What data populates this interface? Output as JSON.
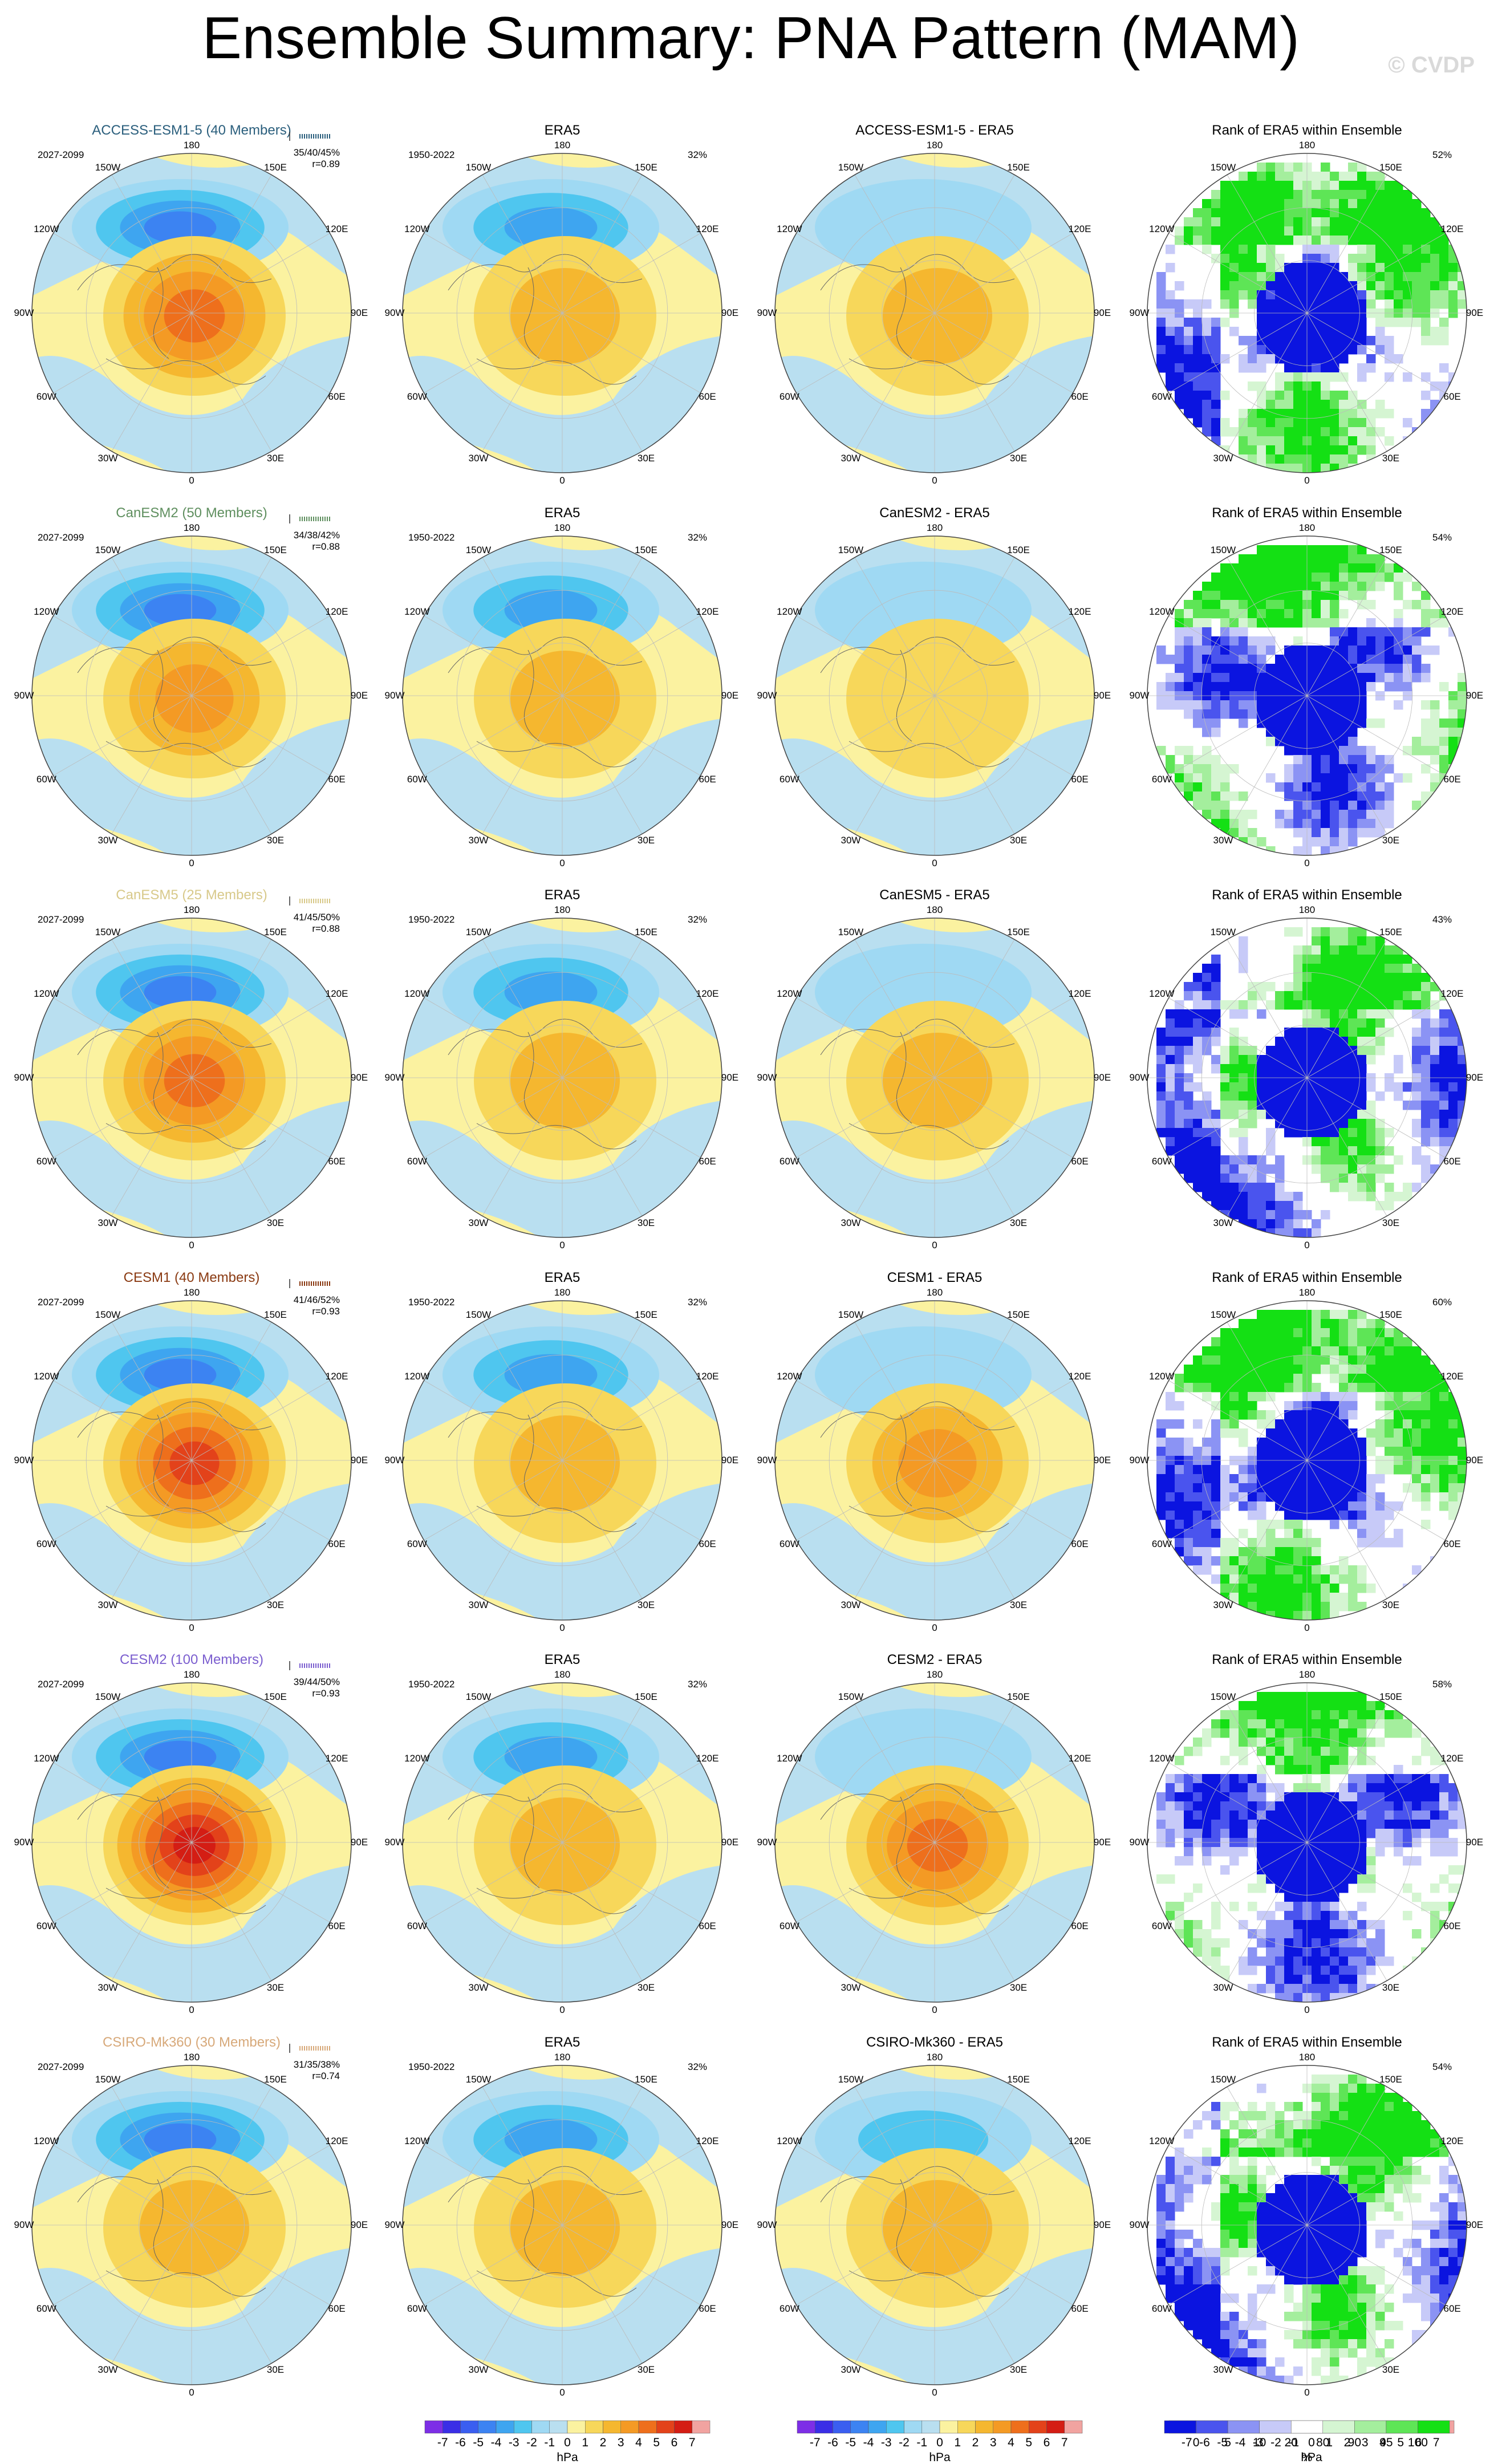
{
  "page": {
    "title": "Ensemble Summary: PNA Pattern (MAM)",
    "watermark": "© CVDP"
  },
  "colors": {
    "model_text": [
      "#2b5f7d",
      "#5f8f5f",
      "#d8c98a",
      "#8a3a12",
      "#7b5ecf",
      "#d7a97a"
    ],
    "ocean": "#b9dff0",
    "land": "#fbf2a0"
  },
  "chart_data": {
    "type": "heatmap",
    "projection": "north-polar-stereographic",
    "units": "hPa",
    "grid": true,
    "longitude_labels": [
      "180",
      "150E",
      "120E",
      "90E",
      "60E",
      "30E",
      "0",
      "30W",
      "60W",
      "90W",
      "120W",
      "150W"
    ],
    "hpa_colorbar_labels": [
      "-7",
      "-6",
      "-5",
      "-4",
      "-3",
      "-2",
      "-1",
      "0",
      "1",
      "2",
      "3",
      "4",
      "5",
      "6",
      "7"
    ],
    "rank_colorbar_labels": [
      "0",
      "5",
      "10",
      "20",
      "80",
      "90",
      "95",
      "100"
    ],
    "rank_colorbar_unit": "%",
    "hpa_colors": [
      "#7d2ee6",
      "#3a2ee6",
      "#3a5ef0",
      "#3c83f2",
      "#3ea5f0",
      "#4fc6ef",
      "#9fd9f3",
      "#b9dff0",
      "#fbf2a0",
      "#f7d75a",
      "#f5b72f",
      "#f49a24",
      "#ee6f1c",
      "#e3421a",
      "#d41d14",
      "#f1a3a0"
    ],
    "rank_colors": [
      "#0b14e0",
      "#4a54ee",
      "#8b93f4",
      "#c7caf8",
      "#ffffff",
      "#d5f5d2",
      "#a4ee9d",
      "#5ee556",
      "#14e014"
    ],
    "rows": [
      {
        "model": "ACCESS-ESM1-5 (40 Members)",
        "period": "2027-2099",
        "pct_range": "35/40/45%",
        "r": "r=0.89",
        "obs": "ERA5",
        "obs_period": "1950-2022",
        "obs_pct": "32%",
        "diff": "ACCESS-ESM1-5 - ERA5",
        "rank": "Rank of ERA5 within Ensemble",
        "rank_pct": "52%",
        "model_low": -4.5,
        "model_high": 4.5,
        "diff_low": -1.5,
        "diff_high": 2.5
      },
      {
        "model": "CanESM2 (50 Members)",
        "period": "2027-2099",
        "pct_range": "34/38/42%",
        "r": "r=0.88",
        "obs": "ERA5",
        "obs_period": "1950-2022",
        "obs_pct": "32%",
        "diff": "CanESM2 - ERA5",
        "rank": "Rank of ERA5 within Ensemble",
        "rank_pct": "54%",
        "model_low": -4.5,
        "model_high": 3.5,
        "diff_low": -2.0,
        "diff_high": 2.0
      },
      {
        "model": "CanESM5 (25 Members)",
        "period": "2027-2099",
        "pct_range": "41/45/50%",
        "r": "r=0.88",
        "obs": "ERA5",
        "obs_period": "1950-2022",
        "obs_pct": "32%",
        "diff": "CanESM5 - ERA5",
        "rank": "Rank of ERA5 within Ensemble",
        "rank_pct": "43%",
        "model_low": -4.5,
        "model_high": 4.5,
        "diff_low": -2.0,
        "diff_high": 2.5
      },
      {
        "model": "CESM1 (40 Members)",
        "period": "2027-2099",
        "pct_range": "41/46/52%",
        "r": "r=0.93",
        "obs": "ERA5",
        "obs_period": "1950-2022",
        "obs_pct": "32%",
        "diff": "CESM1 - ERA5",
        "rank": "Rank of ERA5 within Ensemble",
        "rank_pct": "60%",
        "model_low": -4.5,
        "model_high": 5.5,
        "diff_low": -1.5,
        "diff_high": 3.5
      },
      {
        "model": "CESM2 (100 Members)",
        "period": "2027-2099",
        "pct_range": "39/44/50%",
        "r": "r=0.93",
        "obs": "ERA5",
        "obs_period": "1950-2022",
        "obs_pct": "32%",
        "diff": "CESM2 - ERA5",
        "rank": "Rank of ERA5 within Ensemble",
        "rank_pct": "58%",
        "model_low": -5.0,
        "model_high": 6.5,
        "diff_low": -1.5,
        "diff_high": 4.5
      },
      {
        "model": "CSIRO-Mk360 (30 Members)",
        "period": "2027-2099",
        "pct_range": "31/35/38%",
        "r": "r=0.74",
        "obs": "ERA5",
        "obs_period": "1950-2022",
        "obs_pct": "32%",
        "diff": "CSIRO-Mk360 - ERA5",
        "rank": "Rank of ERA5 within Ensemble",
        "rank_pct": "54%",
        "model_low": -4.5,
        "model_high": 2.5,
        "diff_low": -2.5,
        "diff_high": 2.5
      }
    ],
    "obs_low": -4.0,
    "obs_high": 3.0
  }
}
